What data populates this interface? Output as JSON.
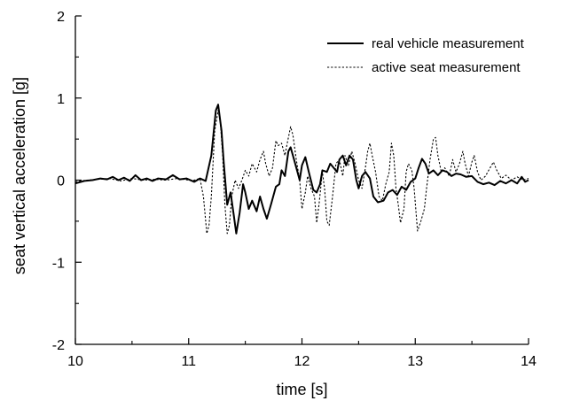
{
  "chart_data": {
    "type": "line",
    "title": "",
    "xlabel": "time [s]",
    "ylabel": "seat vertical acceleration [g]",
    "xlim": [
      10,
      14
    ],
    "ylim": [
      -2,
      2
    ],
    "xticks": [
      "10",
      "11",
      "12",
      "13",
      "14"
    ],
    "yticks": [
      "-2",
      "-1",
      "0",
      "1",
      "2"
    ],
    "grid": false,
    "legend_position": "top-right",
    "series": [
      {
        "name": "real vehicle measurement",
        "style": "solid",
        "color": "#000000",
        "points": [
          [
            10.0,
            -0.04
          ],
          [
            10.08,
            -0.01
          ],
          [
            10.15,
            0.0
          ],
          [
            10.22,
            0.02
          ],
          [
            10.28,
            0.01
          ],
          [
            10.33,
            0.04
          ],
          [
            10.38,
            0.0
          ],
          [
            10.43,
            0.03
          ],
          [
            10.48,
            -0.01
          ],
          [
            10.53,
            0.06
          ],
          [
            10.58,
            0.0
          ],
          [
            10.63,
            0.02
          ],
          [
            10.68,
            -0.01
          ],
          [
            10.73,
            0.02
          ],
          [
            10.8,
            0.01
          ],
          [
            10.86,
            0.06
          ],
          [
            10.92,
            0.01
          ],
          [
            10.98,
            0.02
          ],
          [
            11.05,
            -0.02
          ],
          [
            11.1,
            0.02
          ],
          [
            11.15,
            -0.01
          ],
          [
            11.2,
            0.3
          ],
          [
            11.24,
            0.85
          ],
          [
            11.26,
            0.92
          ],
          [
            11.29,
            0.6
          ],
          [
            11.31,
            0.2
          ],
          [
            11.34,
            -0.3
          ],
          [
            11.37,
            -0.15
          ],
          [
            11.4,
            -0.45
          ],
          [
            11.42,
            -0.65
          ],
          [
            11.45,
            -0.4
          ],
          [
            11.48,
            -0.05
          ],
          [
            11.5,
            -0.15
          ],
          [
            11.53,
            -0.35
          ],
          [
            11.56,
            -0.25
          ],
          [
            11.6,
            -0.38
          ],
          [
            11.63,
            -0.2
          ],
          [
            11.66,
            -0.35
          ],
          [
            11.69,
            -0.47
          ],
          [
            11.73,
            -0.28
          ],
          [
            11.77,
            -0.08
          ],
          [
            11.8,
            -0.05
          ],
          [
            11.82,
            0.12
          ],
          [
            11.85,
            0.05
          ],
          [
            11.88,
            0.35
          ],
          [
            11.9,
            0.4
          ],
          [
            11.93,
            0.25
          ],
          [
            11.96,
            0.1
          ],
          [
            11.98,
            0.0
          ],
          [
            12.0,
            0.18
          ],
          [
            12.03,
            0.28
          ],
          [
            12.06,
            0.1
          ],
          [
            12.1,
            -0.12
          ],
          [
            12.13,
            -0.15
          ],
          [
            12.16,
            -0.05
          ],
          [
            12.18,
            0.12
          ],
          [
            12.22,
            0.1
          ],
          [
            12.25,
            0.2
          ],
          [
            12.28,
            0.15
          ],
          [
            12.31,
            0.1
          ],
          [
            12.33,
            0.25
          ],
          [
            12.36,
            0.3
          ],
          [
            12.39,
            0.18
          ],
          [
            12.42,
            0.3
          ],
          [
            12.45,
            0.25
          ],
          [
            12.48,
            0.0
          ],
          [
            12.5,
            -0.1
          ],
          [
            12.53,
            0.05
          ],
          [
            12.56,
            0.1
          ],
          [
            12.6,
            0.02
          ],
          [
            12.63,
            -0.2
          ],
          [
            12.67,
            -0.27
          ],
          [
            12.72,
            -0.25
          ],
          [
            12.76,
            -0.15
          ],
          [
            12.8,
            -0.12
          ],
          [
            12.84,
            -0.18
          ],
          [
            12.88,
            -0.08
          ],
          [
            12.92,
            -0.12
          ],
          [
            12.96,
            -0.02
          ],
          [
            13.0,
            0.02
          ],
          [
            13.03,
            0.15
          ],
          [
            13.06,
            0.26
          ],
          [
            13.09,
            0.2
          ],
          [
            13.12,
            0.08
          ],
          [
            13.16,
            0.12
          ],
          [
            13.2,
            0.06
          ],
          [
            13.24,
            0.12
          ],
          [
            13.28,
            0.1
          ],
          [
            13.32,
            0.05
          ],
          [
            13.36,
            0.08
          ],
          [
            13.4,
            0.07
          ],
          [
            13.45,
            0.04
          ],
          [
            13.5,
            0.05
          ],
          [
            13.55,
            -0.02
          ],
          [
            13.6,
            -0.05
          ],
          [
            13.65,
            -0.03
          ],
          [
            13.7,
            -0.06
          ],
          [
            13.75,
            -0.01
          ],
          [
            13.8,
            -0.04
          ],
          [
            13.85,
            0.0
          ],
          [
            13.9,
            -0.04
          ],
          [
            13.94,
            0.04
          ],
          [
            13.97,
            -0.02
          ],
          [
            14.0,
            0.0
          ]
        ]
      },
      {
        "name": "active seat measurement",
        "style": "dotted",
        "color": "#000000",
        "points": [
          [
            10.0,
            -0.02
          ],
          [
            10.1,
            0.0
          ],
          [
            10.2,
            0.01
          ],
          [
            10.3,
            0.02
          ],
          [
            10.4,
            -0.01
          ],
          [
            10.5,
            0.02
          ],
          [
            10.6,
            0.0
          ],
          [
            10.7,
            0.01
          ],
          [
            10.8,
            0.0
          ],
          [
            10.9,
            0.02
          ],
          [
            11.0,
            0.0
          ],
          [
            11.05,
            0.0
          ],
          [
            11.1,
            0.02
          ],
          [
            11.13,
            -0.2
          ],
          [
            11.16,
            -0.65
          ],
          [
            11.18,
            -0.55
          ],
          [
            11.2,
            -0.2
          ],
          [
            11.23,
            0.6
          ],
          [
            11.26,
            0.85
          ],
          [
            11.28,
            0.7
          ],
          [
            11.3,
            0.3
          ],
          [
            11.32,
            -0.3
          ],
          [
            11.34,
            -0.65
          ],
          [
            11.36,
            -0.55
          ],
          [
            11.38,
            -0.2
          ],
          [
            11.41,
            0.0
          ],
          [
            11.44,
            -0.1
          ],
          [
            11.47,
            0.0
          ],
          [
            11.5,
            0.12
          ],
          [
            11.53,
            0.05
          ],
          [
            11.56,
            0.2
          ],
          [
            11.6,
            0.1
          ],
          [
            11.63,
            0.25
          ],
          [
            11.66,
            0.35
          ],
          [
            11.68,
            0.2
          ],
          [
            11.71,
            0.05
          ],
          [
            11.74,
            0.15
          ],
          [
            11.77,
            0.48
          ],
          [
            11.79,
            0.42
          ],
          [
            11.82,
            0.45
          ],
          [
            11.85,
            0.3
          ],
          [
            11.87,
            0.45
          ],
          [
            11.9,
            0.65
          ],
          [
            11.92,
            0.55
          ],
          [
            11.95,
            0.25
          ],
          [
            11.98,
            0.0
          ],
          [
            12.0,
            -0.35
          ],
          [
            12.03,
            -0.15
          ],
          [
            12.05,
            0.05
          ],
          [
            12.08,
            -0.1
          ],
          [
            12.11,
            -0.2
          ],
          [
            12.13,
            -0.52
          ],
          [
            12.15,
            -0.3
          ],
          [
            12.18,
            0.1
          ],
          [
            12.2,
            -0.1
          ],
          [
            12.22,
            -0.5
          ],
          [
            12.24,
            -0.55
          ],
          [
            12.27,
            -0.2
          ],
          [
            12.3,
            0.2
          ],
          [
            12.33,
            0.25
          ],
          [
            12.36,
            0.05
          ],
          [
            12.38,
            0.3
          ],
          [
            12.41,
            0.18
          ],
          [
            12.44,
            0.35
          ],
          [
            12.47,
            0.2
          ],
          [
            12.5,
            0.0
          ],
          [
            12.53,
            -0.1
          ],
          [
            12.56,
            0.15
          ],
          [
            12.58,
            0.35
          ],
          [
            12.6,
            0.45
          ],
          [
            12.62,
            0.3
          ],
          [
            12.65,
            0.1
          ],
          [
            12.68,
            -0.2
          ],
          [
            12.71,
            -0.25
          ],
          [
            12.74,
            -0.05
          ],
          [
            12.77,
            0.1
          ],
          [
            12.79,
            0.45
          ],
          [
            12.81,
            0.3
          ],
          [
            12.83,
            -0.1
          ],
          [
            12.85,
            -0.3
          ],
          [
            12.87,
            -0.52
          ],
          [
            12.9,
            -0.35
          ],
          [
            12.92,
            0.1
          ],
          [
            12.94,
            0.2
          ],
          [
            12.97,
            0.12
          ],
          [
            12.99,
            -0.1
          ],
          [
            13.02,
            -0.62
          ],
          [
            13.05,
            -0.5
          ],
          [
            13.08,
            -0.35
          ],
          [
            13.1,
            -0.1
          ],
          [
            13.13,
            0.25
          ],
          [
            13.16,
            0.5
          ],
          [
            13.18,
            0.52
          ],
          [
            13.2,
            0.3
          ],
          [
            13.23,
            0.1
          ],
          [
            13.26,
            0.15
          ],
          [
            13.3,
            0.05
          ],
          [
            13.33,
            0.25
          ],
          [
            13.36,
            0.1
          ],
          [
            13.39,
            0.2
          ],
          [
            13.42,
            0.35
          ],
          [
            13.44,
            0.2
          ],
          [
            13.47,
            0.05
          ],
          [
            13.5,
            0.22
          ],
          [
            13.52,
            0.3
          ],
          [
            13.55,
            0.1
          ],
          [
            13.58,
            0.0
          ],
          [
            13.62,
            0.05
          ],
          [
            13.66,
            0.15
          ],
          [
            13.69,
            0.22
          ],
          [
            13.72,
            0.12
          ],
          [
            13.76,
            0.02
          ],
          [
            13.8,
            0.06
          ],
          [
            13.85,
            0.0
          ],
          [
            13.9,
            0.04
          ],
          [
            13.95,
            0.0
          ],
          [
            14.0,
            0.02
          ]
        ]
      }
    ]
  }
}
